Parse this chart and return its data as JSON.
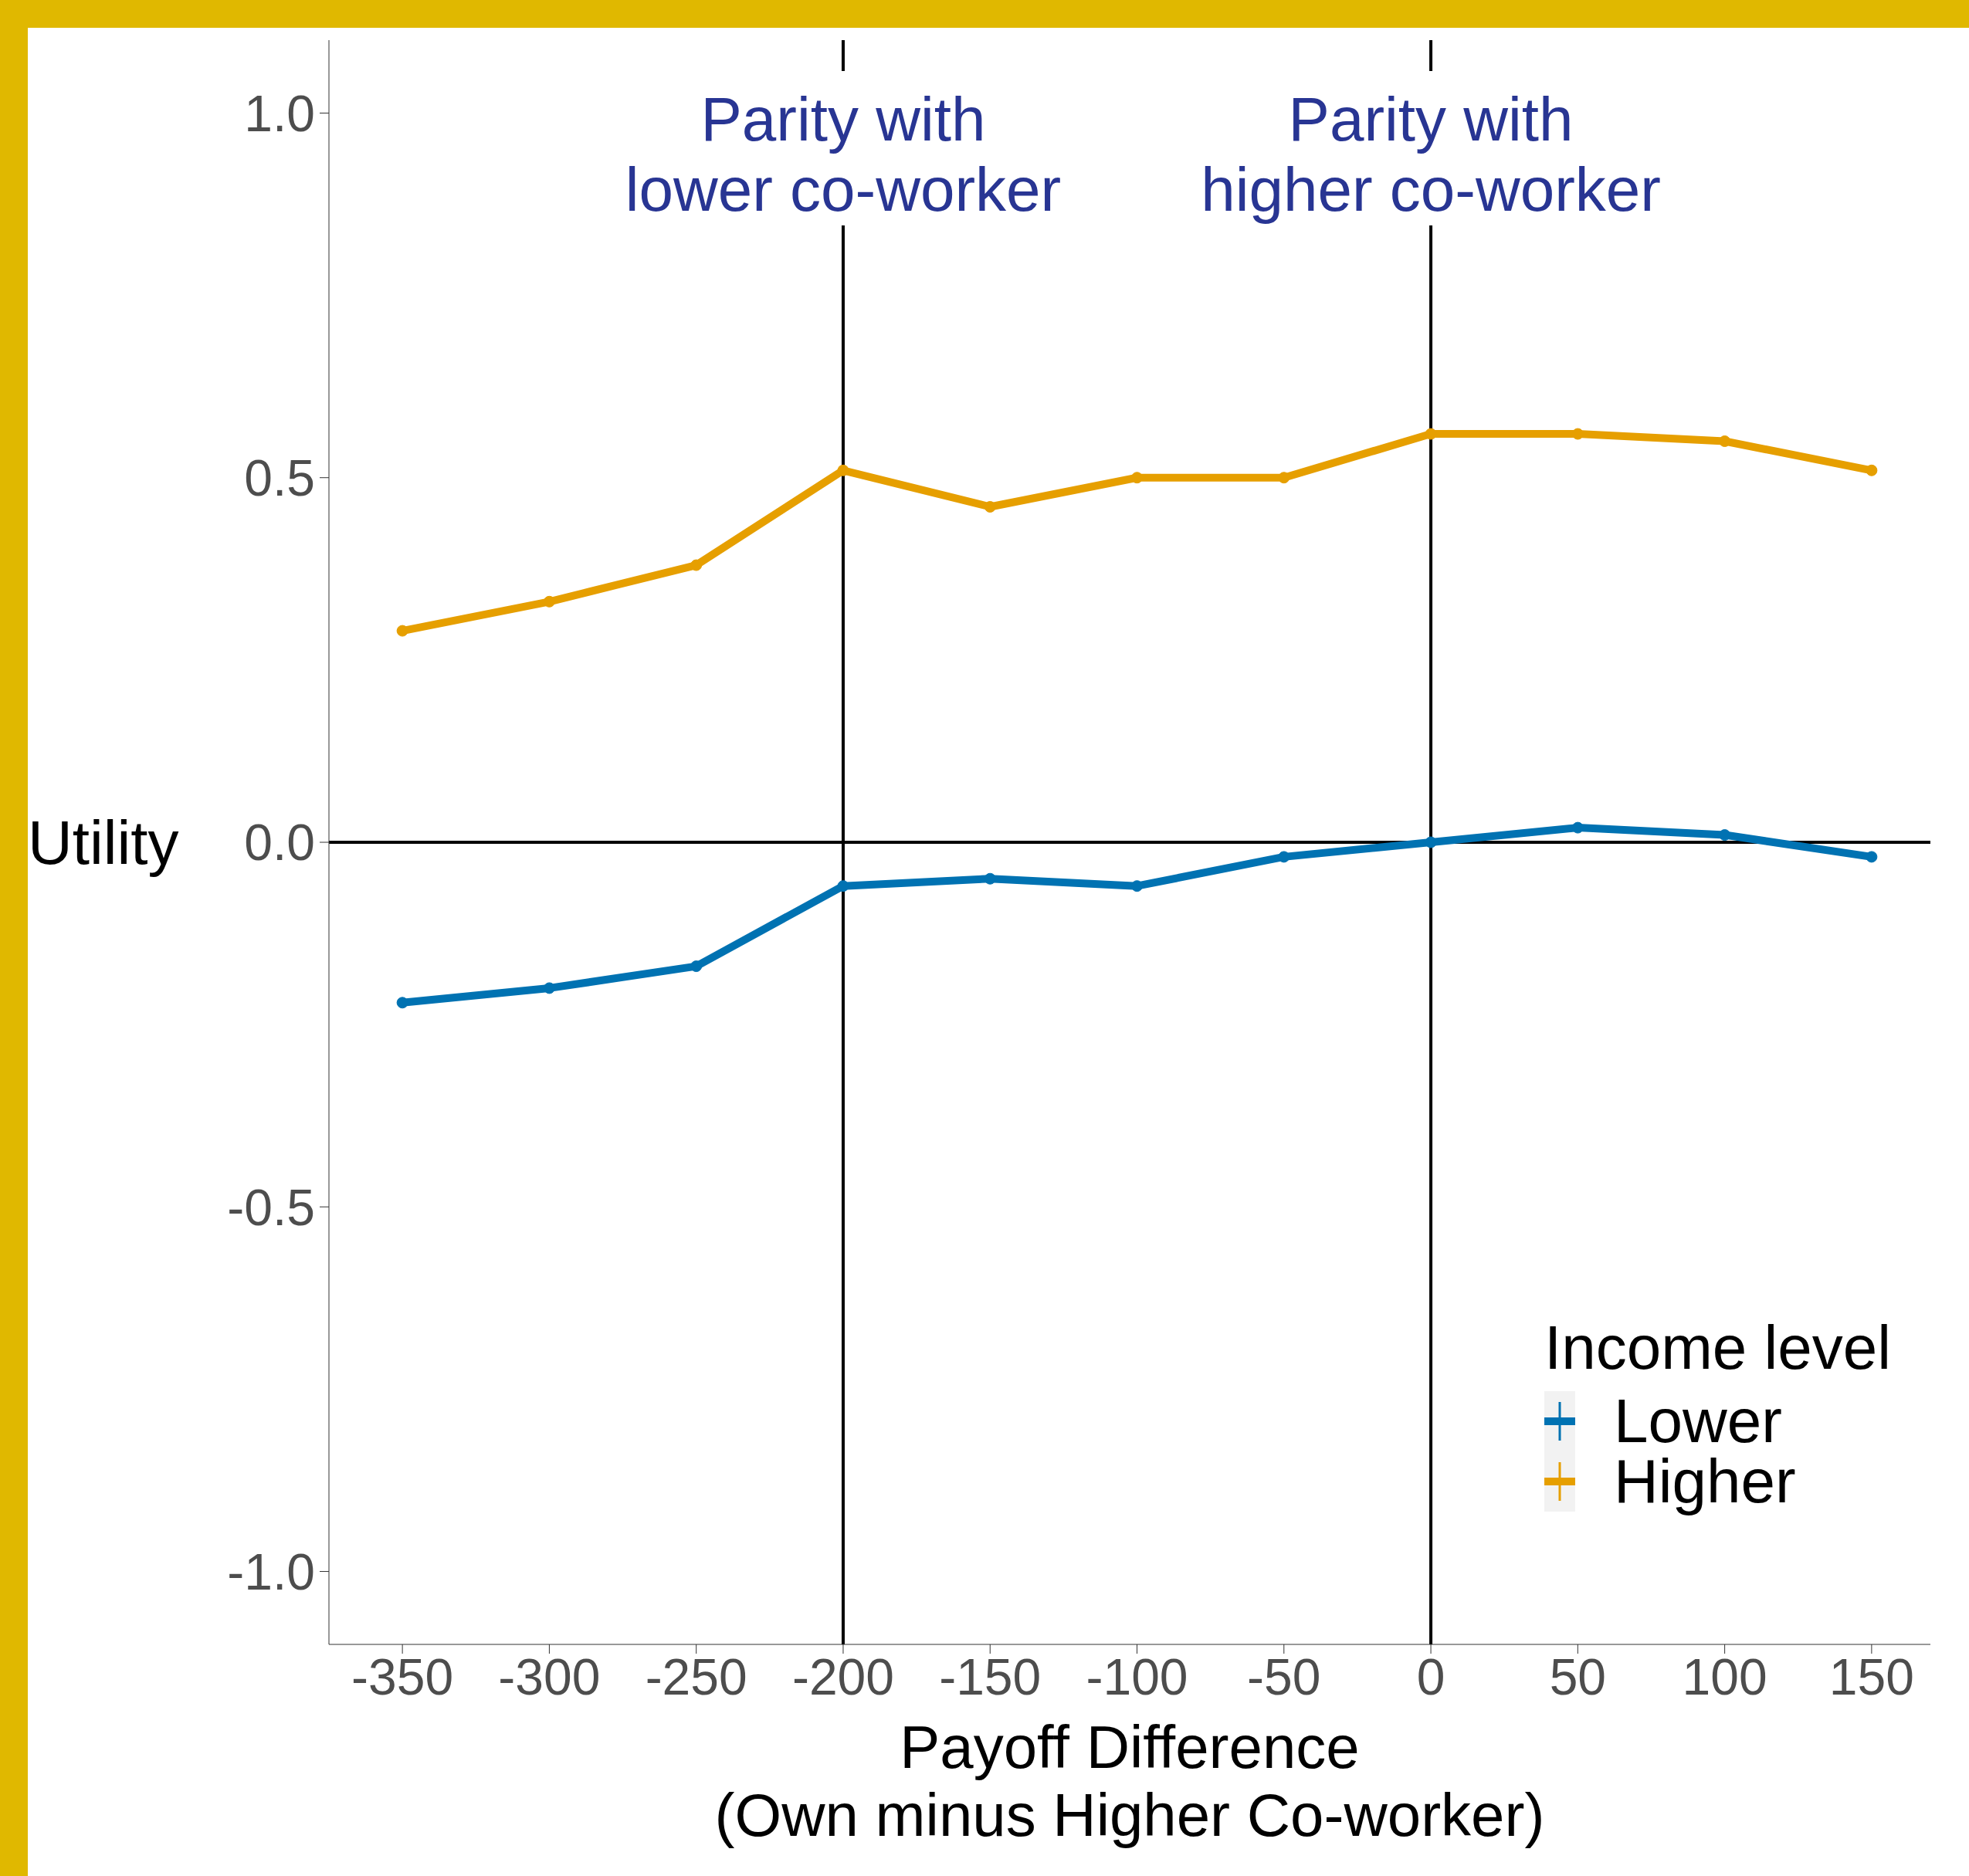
{
  "chart_data": {
    "type": "line",
    "xlabel": "Payoff Difference\n(Own minus Higher Co-worker)",
    "ylabel": "Utility",
    "legend_title": "Income level",
    "x": [
      -350,
      -300,
      -250,
      -200,
      -150,
      -100,
      -50,
      0,
      50,
      100,
      150
    ],
    "series": [
      {
        "name": "Lower",
        "color": "#0072b2",
        "values": [
          -0.22,
          -0.2,
          -0.17,
          -0.06,
          -0.05,
          -0.06,
          -0.02,
          0.0,
          0.02,
          0.01,
          -0.02
        ]
      },
      {
        "name": "Higher",
        "color": "#e69f00",
        "values": [
          0.29,
          0.33,
          0.38,
          0.51,
          0.46,
          0.5,
          0.5,
          0.56,
          0.56,
          0.55,
          0.51
        ]
      }
    ],
    "xlim": [
      -375,
      170
    ],
    "xticks": [
      -350,
      -300,
      -250,
      -200,
      -150,
      -100,
      -50,
      0,
      50,
      100,
      150
    ],
    "ylim": [
      -1.1,
      1.1
    ],
    "yticks": [
      {
        "value": -1,
        "label": "-1.0"
      },
      -0.5,
      {
        "value": 0,
        "label": "0.0"
      },
      0.5,
      {
        "value": 1,
        "label": "1.0"
      }
    ],
    "ref_lines": [
      {
        "axis": "x",
        "value": -200,
        "label": "Parity with\nlower co-worker",
        "color": "#000000"
      },
      {
        "axis": "x",
        "value": 0,
        "label": "Parity with\nhigher co-worker",
        "color": "#000000"
      },
      {
        "axis": "y",
        "value": 0,
        "color": "#000000"
      }
    ],
    "grid": false,
    "legend": "bottom right",
    "marker": "circle",
    "line_style": "solid"
  }
}
